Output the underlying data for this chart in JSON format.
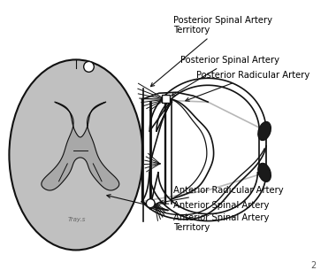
{
  "bg_color": "#ffffff",
  "line_color": "#111111",
  "gray_fill": "#c0c0c0",
  "label_fontsize": 7.2,
  "figsize": [
    3.8,
    3.14
  ],
  "dpi": 100,
  "labels": {
    "psa_territory": "Posterior Spinal Artery\nTerritory",
    "psa": "Posterior Spinal Artery",
    "pra": "Posterior Radicular Artery",
    "ara": "Anterior Radicular Artery",
    "asa": "Anterior Spinal Artery",
    "asa_territory": "Anterior Spinal Artery\nTerritory"
  }
}
